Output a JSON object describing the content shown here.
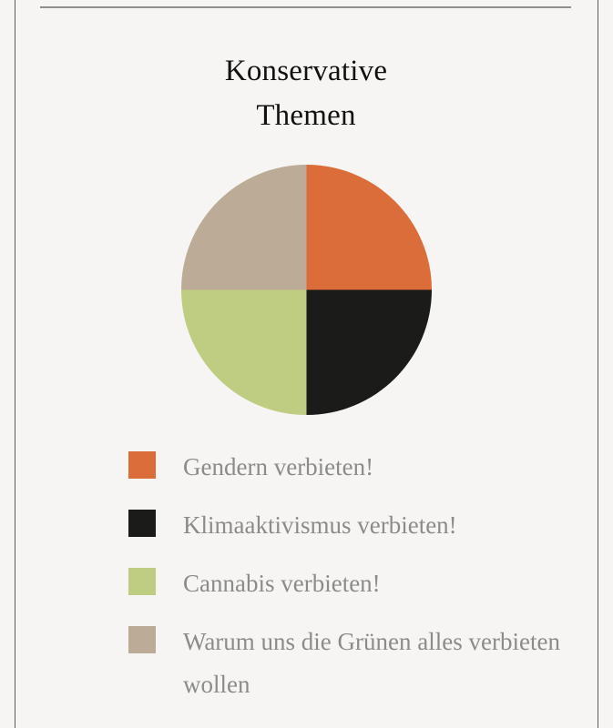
{
  "chart_data": {
    "type": "pie",
    "title": [
      "Konservative",
      "Themen"
    ],
    "slices": [
      {
        "label": "Gendern verbieten!",
        "value": 25,
        "color": "#db6d3b"
      },
      {
        "label": "Klimaaktivismus verbieten!",
        "value": 25,
        "color": "#1b1b19"
      },
      {
        "label": "Cannabis verbieten!",
        "value": 25,
        "color": "#bfcd82"
      },
      {
        "label": "Warum uns die Grünen alles verbieten wollen",
        "value": 25,
        "color": "#bcab97"
      }
    ],
    "start_angle_deg": 0,
    "direction": "clockwise",
    "legend_position": "bottom"
  }
}
